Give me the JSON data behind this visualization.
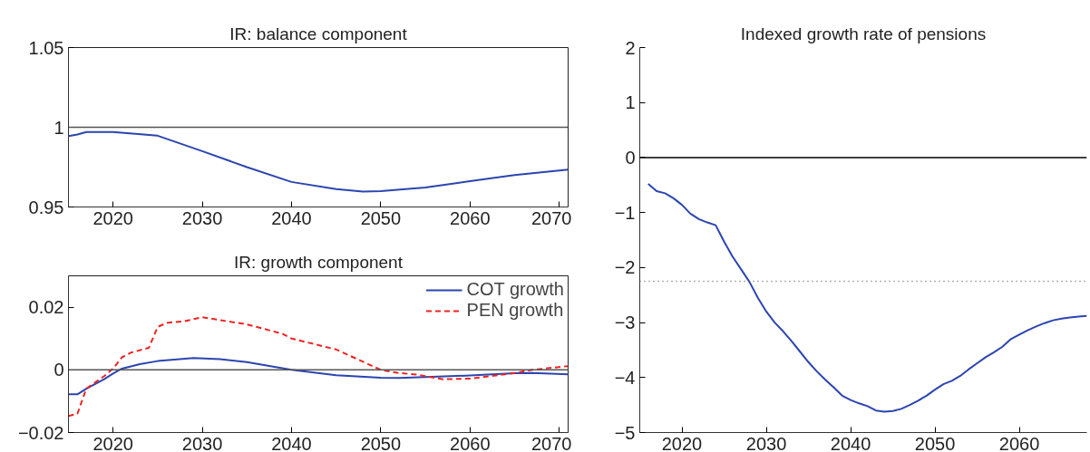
{
  "chart_data": [
    {
      "type": "line",
      "title": "IR: balance component",
      "xlim": [
        2015,
        2071
      ],
      "xticks": [
        2020,
        2030,
        2040,
        2050,
        2060,
        2070
      ],
      "ylim": [
        0.95,
        1.05
      ],
      "yticks": [
        0.95,
        1,
        1.05
      ],
      "grid": false,
      "legend": false,
      "ref_lines": [
        {
          "axis": "y",
          "value": 1,
          "color": "#555555",
          "line_style": "solid"
        }
      ],
      "series": [
        {
          "color": "#2b45b0",
          "line_style": "solid",
          "x": [
            2015,
            2016,
            2017,
            2020,
            2025,
            2030,
            2035,
            2040,
            2045,
            2048,
            2050,
            2055,
            2060,
            2065,
            2071
          ],
          "values": [
            0.9945,
            0.9955,
            0.997,
            0.997,
            0.9947,
            0.985,
            0.975,
            0.9657,
            0.9612,
            0.9597,
            0.96,
            0.9622,
            0.9662,
            0.97,
            0.9734
          ]
        }
      ]
    },
    {
      "type": "line",
      "title": "IR: growth component",
      "xlim": [
        2015,
        2071
      ],
      "xticks": [
        2020,
        2030,
        2040,
        2050,
        2060,
        2070
      ],
      "ylim": [
        -0.02,
        0.03
      ],
      "yticks": [
        -0.02,
        0,
        0.02
      ],
      "grid": false,
      "legend": "top right",
      "ref_lines": [
        {
          "axis": "y",
          "value": 0,
          "color": "#555555",
          "line_style": "solid"
        }
      ],
      "series": [
        {
          "name": "COT growth",
          "color": "#2b45b0",
          "line_style": "solid",
          "x": [
            2015,
            2016,
            2017,
            2019,
            2020,
            2021,
            2023,
            2025,
            2029,
            2032,
            2035,
            2040,
            2045,
            2050,
            2052,
            2055,
            2060,
            2065,
            2067,
            2071
          ],
          "values": [
            -0.0078,
            -0.0078,
            -0.006,
            -0.003,
            -0.0012,
            0.0004,
            0.0018,
            0.0028,
            0.0038,
            0.0034,
            0.0025,
            0.0,
            -0.0017,
            -0.0025,
            -0.0026,
            -0.0023,
            -0.0018,
            -0.0011,
            -0.001,
            -0.0014
          ]
        },
        {
          "name": "PEN growth",
          "color": "#ee2222",
          "line_style": "dashed",
          "x": [
            2015,
            2016,
            2017,
            2019,
            2020,
            2021,
            2022,
            2024,
            2025,
            2026,
            2028,
            2030,
            2035,
            2039,
            2040,
            2045,
            2050,
            2052,
            2054,
            2057,
            2060,
            2065,
            2067,
            2071
          ],
          "values": [
            -0.0147,
            -0.014,
            -0.006,
            -0.002,
            0.0004,
            0.004,
            0.0055,
            0.007,
            0.0137,
            0.015,
            0.0155,
            0.0168,
            0.0145,
            0.0115,
            0.01,
            0.0065,
            0.0,
            -0.001,
            -0.0015,
            -0.003,
            -0.0028,
            -0.001,
            0.0,
            0.0012
          ]
        }
      ]
    },
    {
      "type": "line",
      "title": "Indexed growth rate of pensions",
      "xlim": [
        2015,
        2068
      ],
      "xticks": [
        2020,
        2030,
        2040,
        2050,
        2060
      ],
      "ylim": [
        -5,
        2
      ],
      "yticks": [
        -5,
        -4,
        -3,
        -2,
        -1,
        0,
        1,
        2
      ],
      "grid": false,
      "legend": false,
      "ref_lines": [
        {
          "axis": "y",
          "value": 0,
          "color": "#000000",
          "line_style": "solid"
        },
        {
          "axis": "y",
          "value": -2.25,
          "color": "#666666",
          "line_style": "dotted"
        }
      ],
      "series": [
        {
          "color": "#2b45b0",
          "line_style": "solid",
          "x": [
            2016,
            2017,
            2018,
            2019,
            2020,
            2021,
            2022,
            2023,
            2024,
            2025,
            2026,
            2027,
            2028,
            2029,
            2030,
            2031,
            2032,
            2033,
            2034,
            2035,
            2036,
            2037,
            2038,
            2039,
            2040,
            2041,
            2042,
            2043,
            2044,
            2045,
            2046,
            2047,
            2048,
            2049,
            2050,
            2051,
            2052,
            2053,
            2054,
            2055,
            2056,
            2057,
            2058,
            2059,
            2060,
            2061,
            2062,
            2063,
            2064,
            2065,
            2066,
            2067,
            2068
          ],
          "values": [
            -0.48,
            -0.61,
            -0.65,
            -0.74,
            -0.86,
            -1.02,
            -1.12,
            -1.18,
            -1.23,
            -1.53,
            -1.8,
            -2.03,
            -2.26,
            -2.55,
            -2.8,
            -3.0,
            -3.16,
            -3.34,
            -3.53,
            -3.72,
            -3.89,
            -4.04,
            -4.18,
            -4.33,
            -4.41,
            -4.47,
            -4.52,
            -4.6,
            -4.62,
            -4.61,
            -4.57,
            -4.5,
            -4.42,
            -4.33,
            -4.22,
            -4.12,
            -4.06,
            -3.97,
            -3.85,
            -3.74,
            -3.63,
            -3.54,
            -3.44,
            -3.3,
            -3.22,
            -3.14,
            -3.07,
            -3.01,
            -2.96,
            -2.93,
            -2.91,
            -2.89,
            -2.88
          ]
        }
      ]
    }
  ]
}
